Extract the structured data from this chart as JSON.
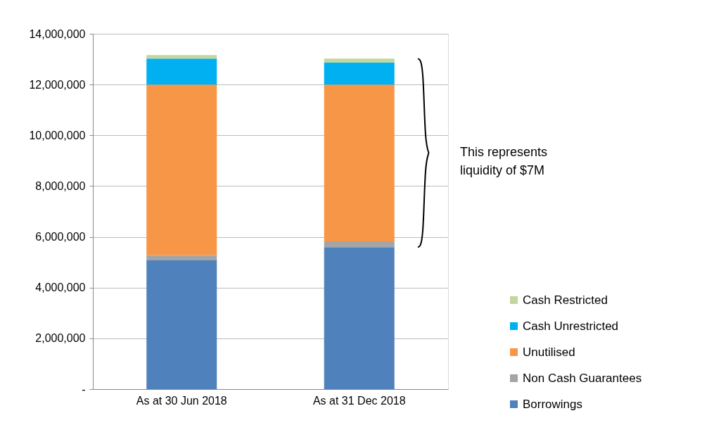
{
  "chart_data": {
    "type": "bar",
    "stacked": true,
    "categories": [
      "As at 30 Jun 2018",
      "As at 31 Dec 2018"
    ],
    "series": [
      {
        "name": "Borrowings",
        "color": "#4f81bd",
        "values": [
          5070000,
          5590000
        ]
      },
      {
        "name": "Non Cash Guarantees",
        "color": "#a5a5a5",
        "values": [
          210000,
          230000
        ]
      },
      {
        "name": "Unutilised",
        "color": "#f79646",
        "values": [
          6720000,
          6180000
        ]
      },
      {
        "name": "Cash Unrestricted",
        "color": "#00b0f0",
        "values": [
          1020000,
          870000
        ]
      },
      {
        "name": "Cash Restricted",
        "color": "#c3d69b",
        "values": [
          140000,
          150000
        ]
      }
    ],
    "ylim": [
      0,
      14000000
    ],
    "yticks": [
      {
        "value": 0,
        "label": "-"
      },
      {
        "value": 2000000,
        "label": "2,000,000"
      },
      {
        "value": 4000000,
        "label": "4,000,000"
      },
      {
        "value": 6000000,
        "label": "6,000,000"
      },
      {
        "value": 8000000,
        "label": "8,000,000"
      },
      {
        "value": 10000000,
        "label": "10,000,000"
      },
      {
        "value": 12000000,
        "label": "12,000,000"
      },
      {
        "value": 14000000,
        "label": "14,000,000"
      }
    ],
    "grid": "y",
    "legend": "right",
    "annotations": [
      "This represents liquidity of $7M"
    ]
  }
}
